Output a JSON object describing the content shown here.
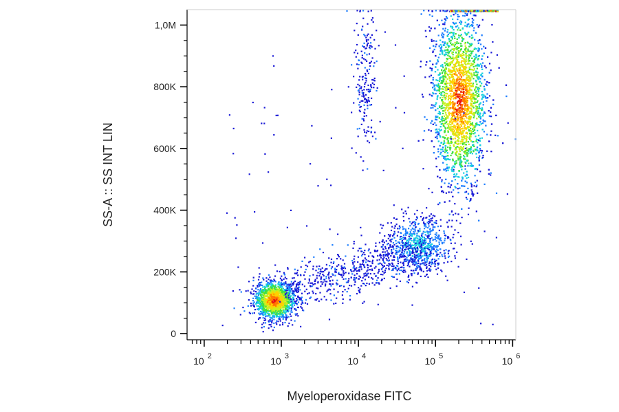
{
  "chart_data": {
    "type": "scatter",
    "plot_style": "flow cytometry density dot plot",
    "xlabel": "Myeloperoxidase FITC",
    "ylabel": "SS-A :: SS INT LIN",
    "xscale": "log",
    "yscale": "linear",
    "xlim": [
      60,
      1100000
    ],
    "ylim": [
      -20000,
      1050000
    ],
    "x_ticks": [
      {
        "value": 100,
        "base": "10",
        "exp": "2"
      },
      {
        "value": 1000,
        "base": "10",
        "exp": "3"
      },
      {
        "value": 10000,
        "base": "10",
        "exp": "4"
      },
      {
        "value": 100000,
        "base": "10",
        "exp": "5"
      },
      {
        "value": 1000000,
        "base": "10",
        "exp": "6"
      }
    ],
    "y_ticks": [
      {
        "value": 0,
        "label": "0"
      },
      {
        "value": 200000,
        "label": "200K"
      },
      {
        "value": 400000,
        "label": "400K"
      },
      {
        "value": 600000,
        "label": "600K"
      },
      {
        "value": 800000,
        "label": "800K"
      },
      {
        "value": 1000000,
        "label": "1,0M"
      }
    ],
    "populations": [
      {
        "center_x": 800,
        "center_y": 110000,
        "spread_log10_x": 0.13,
        "spread_y": 30000,
        "events": 1500,
        "density": "high"
      },
      {
        "center_x": 200000,
        "center_y": 760000,
        "spread_log10_x": 0.17,
        "spread_y": 140000,
        "events": 3300,
        "density": "high"
      },
      {
        "center_x": 60000,
        "center_y": 290000,
        "spread_log10_x": 0.22,
        "spread_y": 45000,
        "events": 650,
        "density": "medium"
      },
      {
        "center_x": 12000,
        "center_y": 850000,
        "spread_log10_x": 0.07,
        "spread_y": 120000,
        "events": 200,
        "density": "low"
      }
    ],
    "density_colors": [
      "#1a1ad6",
      "#1f7fff",
      "#17d0e0",
      "#40e040",
      "#c8f020",
      "#ffd000",
      "#ff7a00",
      "#e81010"
    ],
    "grid": false,
    "legend": "none"
  }
}
